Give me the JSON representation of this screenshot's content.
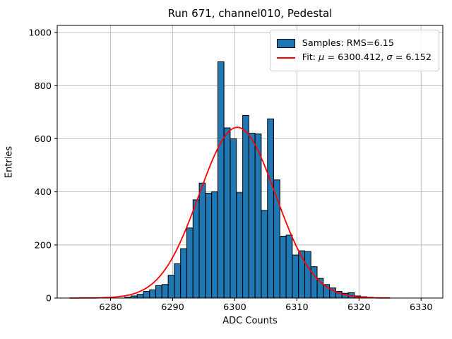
{
  "chart": {
    "title": "Run 671, channel010, Pedestal",
    "xlabel": "ADC Counts",
    "ylabel": "Entries"
  },
  "legend": {
    "samples_label": "Samples: RMS=6.15",
    "fit_prefix": "Fit: ",
    "mu_symbol": "μ",
    "mu_value_text": " = 6300.412, ",
    "sigma_symbol": "σ",
    "sigma_value_text": " = 6.152"
  },
  "chart_data": {
    "type": "bar",
    "subtype": "histogram",
    "title": "Run 671, channel010, Pedestal",
    "xlabel": "ADC Counts",
    "ylabel": "Entries",
    "x_ticks": [
      6280,
      6290,
      6300,
      6310,
      6320,
      6330
    ],
    "y_ticks": [
      0,
      200,
      400,
      600,
      800,
      1000
    ],
    "xlim": [
      6271.4,
      6333.5
    ],
    "ylim": [
      0,
      1027
    ],
    "grid": true,
    "legend_position": "upper right",
    "bin_width": 1,
    "bins": [
      6282,
      6283,
      6284,
      6285,
      6286,
      6287,
      6288,
      6289,
      6290,
      6291,
      6292,
      6293,
      6294,
      6295,
      6296,
      6297,
      6298,
      6299,
      6300,
      6301,
      6302,
      6303,
      6304,
      6305,
      6306,
      6307,
      6308,
      6309,
      6310,
      6311,
      6312,
      6313,
      6314,
      6315,
      6316,
      6317,
      6318,
      6319,
      6320,
      6321
    ],
    "counts": [
      3,
      8,
      14,
      25,
      31,
      47,
      51,
      86,
      129,
      186,
      264,
      370,
      433,
      395,
      400,
      890,
      641,
      600,
      397,
      688,
      621,
      618,
      330,
      675,
      445,
      233,
      237,
      162,
      178,
      175,
      118,
      74,
      51,
      38,
      25,
      18,
      20,
      8,
      5,
      3
    ],
    "series": [
      {
        "name": "Samples: RMS=6.15",
        "type": "histogram",
        "color": "#1f77b4"
      },
      {
        "name": "Fit: μ = 6300.412, σ = 6.152",
        "type": "gaussian",
        "color": "#ff0000"
      }
    ],
    "fit": {
      "mu": 6300.412,
      "sigma": 6.152,
      "amplitude": 643,
      "draw_range": [
        6273.4,
        6325.1
      ]
    },
    "colors": {
      "bar_fill": "#1f77b4",
      "bar_edge": "#000000",
      "fit_line": "#ff0000",
      "grid": "#b0b0b0",
      "axis": "#000000"
    }
  }
}
